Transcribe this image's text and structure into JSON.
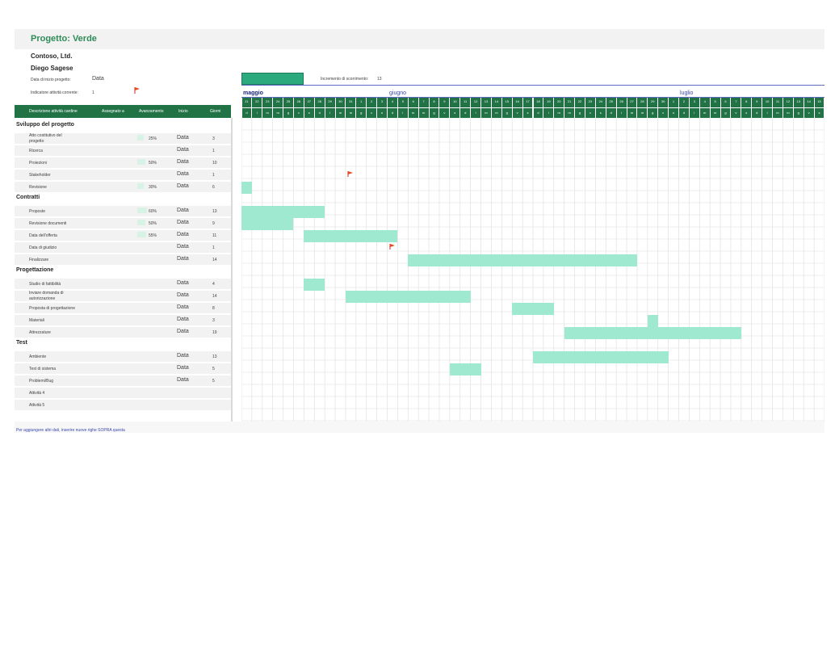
{
  "project": {
    "title": "Progetto: Verde",
    "company": "Contoso, Ltd.",
    "manager": "Diego Sagese",
    "start_label": "Data di inizio progetto:",
    "start_value": "Data",
    "current_label": "Indicatore attività corrente:",
    "current_value": "1",
    "scroll_label": "Incremento di scorrimento:",
    "scroll_value": "13"
  },
  "months": [
    "maggio",
    "giugno",
    "luglio"
  ],
  "day_numbers": [
    "21",
    "22",
    "23",
    "24",
    "25",
    "26",
    "27",
    "28",
    "29",
    "30",
    "31",
    "1",
    "2",
    "3",
    "4",
    "5",
    "6",
    "7",
    "8",
    "9",
    "10",
    "11",
    "12",
    "13",
    "14",
    "15",
    "16",
    "17",
    "18",
    "19",
    "20",
    "21",
    "22",
    "23",
    "24",
    "25",
    "26",
    "27",
    "28",
    "29",
    "30",
    "1",
    "2",
    "3",
    "4",
    "5",
    "6",
    "7",
    "8",
    "9",
    "10",
    "11",
    "12",
    "13",
    "14",
    "15"
  ],
  "day_letters": [
    "d",
    "l",
    "m",
    "m",
    "g",
    "v",
    "s",
    "d",
    "l",
    "m",
    "m",
    "g",
    "v",
    "s",
    "d",
    "l",
    "m",
    "m",
    "g",
    "v",
    "s",
    "d",
    "l",
    "m",
    "m",
    "g",
    "v",
    "s",
    "d",
    "l",
    "m",
    "m",
    "g",
    "v",
    "s",
    "d",
    "l",
    "m",
    "m",
    "g",
    "v",
    "s",
    "d",
    "l",
    "m",
    "m",
    "g",
    "v",
    "s",
    "d",
    "l",
    "m",
    "m",
    "g",
    "v",
    "s"
  ],
  "table_headers": {
    "description": "Descrizione attività cardine",
    "assigned": "Assegnato a",
    "progress": "Avanzamento",
    "start": "Inizio",
    "days": "Giorni"
  },
  "phases": [
    {
      "name": "Sviluppo del progetto",
      "tasks": [
        {
          "label": "Atto costitutivo del progetto",
          "progress": "25%",
          "pct": 25,
          "start": "Data",
          "days": "3"
        },
        {
          "label": "Ricerca",
          "progress": "",
          "pct": 0,
          "start": "Data",
          "days": "1"
        },
        {
          "label": "Proiezioni",
          "progress": "50%",
          "pct": 50,
          "start": "Data",
          "days": "10"
        },
        {
          "label": "Stakeholder",
          "progress": "",
          "pct": 0,
          "start": "Data",
          "days": "1"
        },
        {
          "label": "Revisione",
          "progress": "30%",
          "pct": 30,
          "start": "Data",
          "days": "6"
        }
      ]
    },
    {
      "name": "Contratti",
      "tasks": [
        {
          "label": "Proposte",
          "progress": "60%",
          "pct": 60,
          "start": "Data",
          "days": "13"
        },
        {
          "label": "Revisione documenti",
          "progress": "50%",
          "pct": 50,
          "start": "Data",
          "days": "9"
        },
        {
          "label": "Data dell'offerta",
          "progress": "55%",
          "pct": 55,
          "start": "Data",
          "days": "11"
        },
        {
          "label": "Data di giudizio",
          "progress": "",
          "pct": 0,
          "start": "Data",
          "days": "1"
        },
        {
          "label": "Finalizzare",
          "progress": "",
          "pct": 0,
          "start": "Data",
          "days": "14"
        }
      ]
    },
    {
      "name": "Progettazione",
      "tasks": [
        {
          "label": "Studio di fattibilità",
          "progress": "",
          "pct": 0,
          "start": "Data",
          "days": "4"
        },
        {
          "label": "Inviare domanda di autorizzazione",
          "progress": "",
          "pct": 0,
          "start": "Data",
          "days": "14"
        },
        {
          "label": "Proposta di progettazione",
          "progress": "",
          "pct": 0,
          "start": "Data",
          "days": "8"
        },
        {
          "label": "Materiali",
          "progress": "",
          "pct": 0,
          "start": "Data",
          "days": "3"
        },
        {
          "label": "Attrezzature",
          "progress": "",
          "pct": 0,
          "start": "Data",
          "days": "19"
        }
      ]
    },
    {
      "name": "Test",
      "tasks": [
        {
          "label": "Ambiente",
          "progress": "",
          "pct": 0,
          "start": "Data",
          "days": "13"
        },
        {
          "label": "Test di sistema",
          "progress": "",
          "pct": 0,
          "start": "Data",
          "days": "5"
        },
        {
          "label": "Problemi/Bug",
          "progress": "",
          "pct": 0,
          "start": "Data",
          "days": "5"
        },
        {
          "label": "Attività 4",
          "progress": "",
          "pct": 0,
          "start": "",
          "days": ""
        },
        {
          "label": "Attività 5",
          "progress": "",
          "pct": 0,
          "start": "",
          "days": ""
        }
      ]
    }
  ],
  "footer_note": "Per aggiungere altri dati, inserire nuove righe SOPRA questa",
  "colors": {
    "header_green": "#217346",
    "bar_mint": "#9ee9cf",
    "title_green": "#2e8b57"
  }
}
